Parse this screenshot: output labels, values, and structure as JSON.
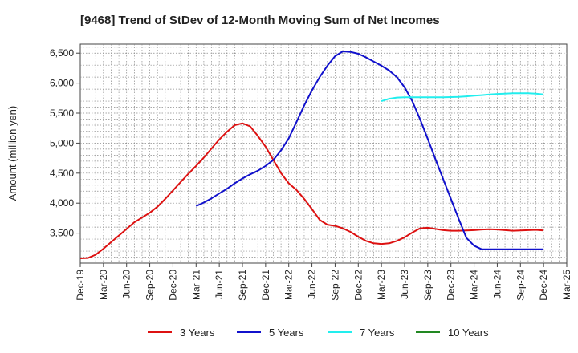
{
  "chart_data": {
    "type": "line",
    "title": "[9468]  Trend of StDev of 12-Month Moving Sum of Net Incomes",
    "ylabel": "Amount (million yen)",
    "xlabel": "",
    "x_tick_labels": [
      "Dec-19",
      "Mar-20",
      "Jun-20",
      "Sep-20",
      "Dec-20",
      "Mar-21",
      "Jun-21",
      "Sep-21",
      "Dec-21",
      "Mar-22",
      "Jun-22",
      "Sep-22",
      "Dec-22",
      "Mar-23",
      "Jun-23",
      "Sep-23",
      "Dec-23",
      "Mar-24",
      "Jun-24",
      "Sep-24",
      "Dec-24",
      "Mar-25"
    ],
    "y_ticks": [
      3500,
      4000,
      4500,
      5000,
      5500,
      6000,
      6500
    ],
    "y_tick_labels": [
      "3,500",
      "4,000",
      "4,500",
      "5,000",
      "5,500",
      "6,000",
      "6,500"
    ],
    "ylim": [
      3000,
      6650
    ],
    "x_range_months": [
      0,
      63
    ],
    "grid": true,
    "legend_position": "bottom",
    "series": [
      {
        "name": "3 Years",
        "color": "#dd1111",
        "x_month_index": [
          0,
          1,
          2,
          3,
          4,
          5,
          6,
          7,
          8,
          9,
          10,
          11,
          12,
          13,
          14,
          15,
          16,
          17,
          18,
          19,
          20,
          21,
          22,
          23,
          24,
          25,
          26,
          27,
          28,
          29,
          30,
          31,
          32,
          33,
          34,
          35,
          36,
          37,
          38,
          39,
          40,
          41,
          42,
          43,
          44,
          45,
          46,
          47,
          48,
          49,
          50,
          51,
          52,
          53,
          54,
          55,
          56,
          57,
          58,
          59,
          60
        ],
        "values": [
          3080,
          3085,
          3140,
          3240,
          3350,
          3460,
          3570,
          3680,
          3760,
          3840,
          3940,
          4070,
          4210,
          4350,
          4490,
          4620,
          4760,
          4910,
          5060,
          5190,
          5300,
          5330,
          5280,
          5120,
          4940,
          4720,
          4500,
          4330,
          4220,
          4070,
          3900,
          3720,
          3640,
          3620,
          3580,
          3520,
          3440,
          3370,
          3330,
          3320,
          3330,
          3370,
          3430,
          3510,
          3580,
          3590,
          3570,
          3550,
          3540,
          3540,
          3545,
          3550,
          3560,
          3565,
          3560,
          3550,
          3540,
          3545,
          3550,
          3555,
          3545
        ]
      },
      {
        "name": "5 Years",
        "color": "#1111cc",
        "x_month_index": [
          15,
          16,
          17,
          18,
          19,
          20,
          21,
          22,
          23,
          24,
          25,
          26,
          27,
          28,
          29,
          30,
          31,
          32,
          33,
          34,
          35,
          36,
          37,
          38,
          39,
          40,
          41,
          42,
          43,
          44,
          45,
          46,
          47,
          48,
          49,
          50,
          51,
          52,
          53,
          54,
          55,
          56,
          57,
          58,
          59,
          60
        ],
        "values": [
          3950,
          4010,
          4080,
          4160,
          4240,
          4330,
          4410,
          4480,
          4540,
          4620,
          4720,
          4880,
          5080,
          5350,
          5630,
          5880,
          6100,
          6290,
          6450,
          6530,
          6520,
          6490,
          6430,
          6360,
          6290,
          6210,
          6100,
          5930,
          5700,
          5400,
          5070,
          4730,
          4400,
          4070,
          3740,
          3420,
          3290,
          3230,
          3230,
          3230,
          3230,
          3230,
          3230,
          3230,
          3230,
          3230
        ]
      },
      {
        "name": "7 Years",
        "color": "#22eeee",
        "x_month_index": [
          39,
          40,
          41,
          42,
          43,
          44,
          45,
          46,
          47,
          48,
          49,
          50,
          51,
          52,
          53,
          54,
          55,
          56,
          57,
          58,
          59,
          60
        ],
        "values": [
          5700,
          5740,
          5760,
          5765,
          5765,
          5765,
          5765,
          5765,
          5765,
          5768,
          5770,
          5780,
          5790,
          5800,
          5810,
          5820,
          5825,
          5830,
          5830,
          5830,
          5825,
          5810
        ]
      },
      {
        "name": "10 Years",
        "color": "#228822",
        "x_month_index": [],
        "values": []
      }
    ]
  }
}
